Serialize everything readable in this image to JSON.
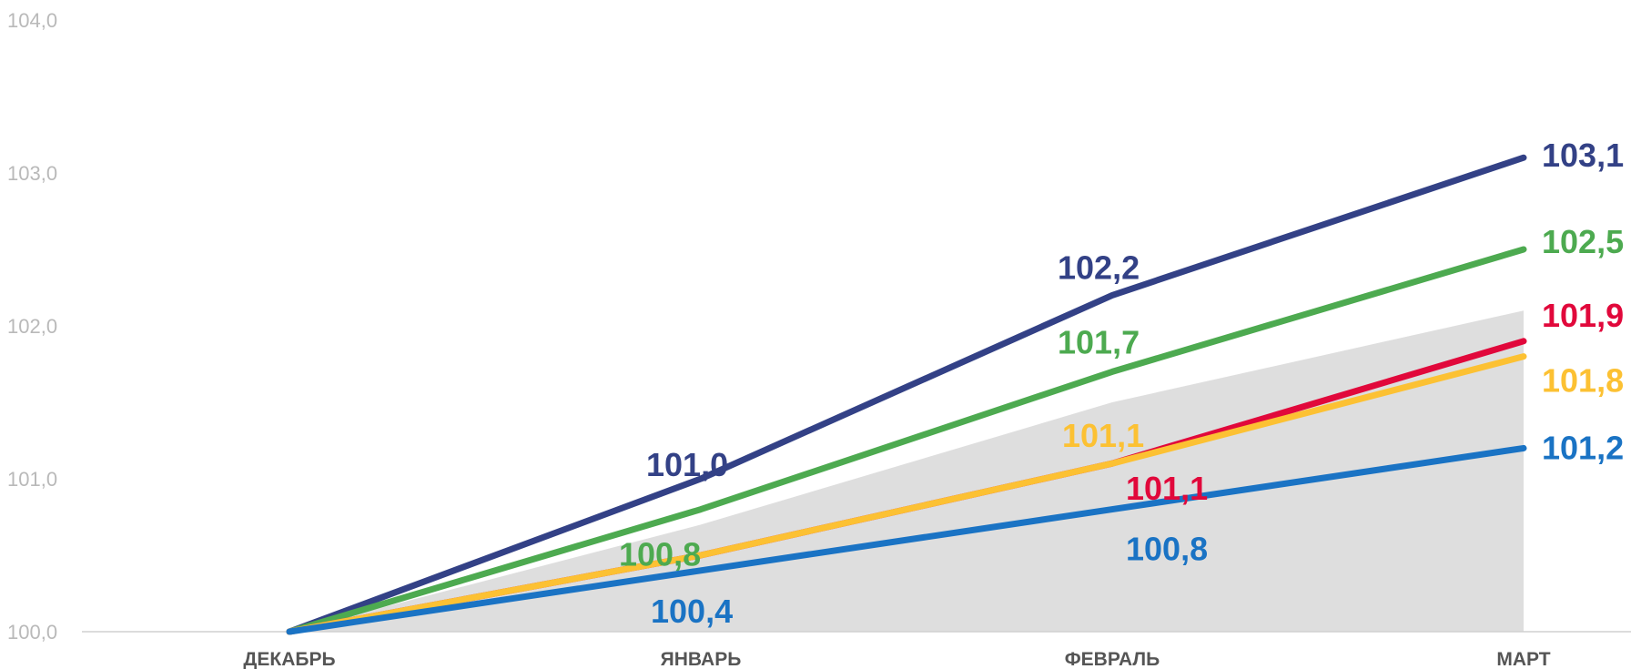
{
  "chart_data": {
    "type": "line",
    "categories": [
      "ДЕКАБРЬ",
      "ЯНВАРЬ",
      "ФЕВРАЛЬ",
      "МАРТ"
    ],
    "ylim": [
      100,
      104
    ],
    "yticks": [
      "100,0",
      "101,0",
      "102,0",
      "103,0",
      "104,0"
    ],
    "grid": false,
    "legend": "none",
    "band": {
      "description": "shaded range",
      "color": "#dedede",
      "lower": [
        100,
        100,
        100,
        100
      ],
      "upper": [
        100,
        100.7,
        101.5,
        102.1
      ]
    },
    "series": [
      {
        "color": "#334186",
        "values": [
          100,
          101.0,
          102.2,
          103.1
        ],
        "labels": [
          "",
          "101,0",
          "102,2",
          "103,1"
        ]
      },
      {
        "color": "#4daa50",
        "values": [
          100,
          100.8,
          101.7,
          102.5
        ],
        "labels": [
          "",
          "100,8",
          "101,7",
          "102,5"
        ]
      },
      {
        "color": "#e1083b",
        "values": [
          100,
          100.5,
          101.1,
          101.9
        ],
        "labels": [
          "",
          "",
          "101,1",
          "101,9"
        ]
      },
      {
        "color": "#fcc133",
        "values": [
          100,
          100.5,
          101.1,
          101.8
        ],
        "labels": [
          "",
          "",
          "101,1",
          "101,8"
        ]
      },
      {
        "color": "#1a73c4",
        "values": [
          100,
          100.4,
          100.8,
          101.2
        ],
        "labels": [
          "",
          "100,4",
          "100,8",
          "101,2"
        ]
      }
    ]
  }
}
